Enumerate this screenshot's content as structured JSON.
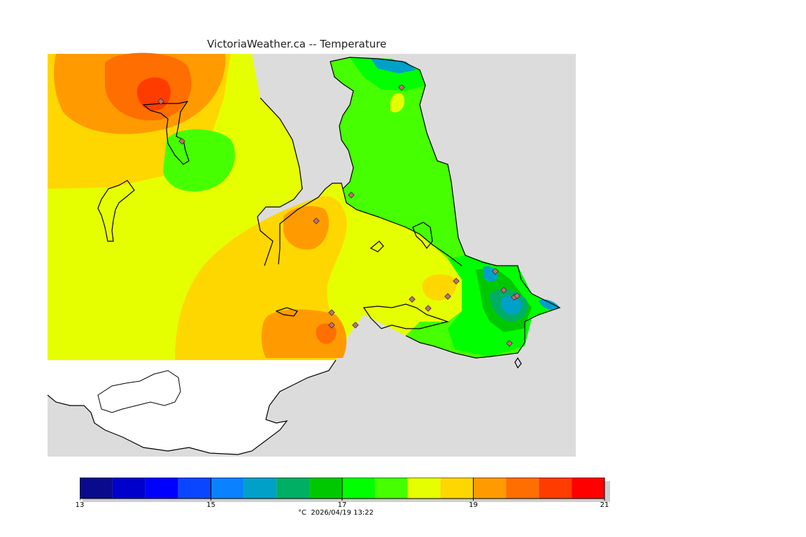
{
  "title": "VictoriaWeather.ca -- Temperature",
  "legend": {
    "unit": "°C",
    "timestamp": "2026/04/19 13:22",
    "min": 13,
    "max": 21,
    "tick_labels": [
      "13",
      "15",
      "17",
      "19",
      "21"
    ],
    "tick_values": [
      13,
      15,
      17,
      19,
      21
    ],
    "bins": [
      {
        "from": 13.0,
        "to": 13.5,
        "color": "#0a0a8c"
      },
      {
        "from": 13.5,
        "to": 14.0,
        "color": "#0000cc"
      },
      {
        "from": 14.0,
        "to": 14.5,
        "color": "#0000ff"
      },
      {
        "from": 14.5,
        "to": 15.0,
        "color": "#0a46ff"
      },
      {
        "from": 15.0,
        "to": 15.5,
        "color": "#0a82ff"
      },
      {
        "from": 15.5,
        "to": 16.0,
        "color": "#00a0c8"
      },
      {
        "from": 16.0,
        "to": 16.5,
        "color": "#00af64"
      },
      {
        "from": 16.5,
        "to": 17.0,
        "color": "#00c800"
      },
      {
        "from": 17.0,
        "to": 17.5,
        "color": "#00ff00"
      },
      {
        "from": 17.5,
        "to": 18.0,
        "color": "#46ff00"
      },
      {
        "from": 18.0,
        "to": 18.5,
        "color": "#e6ff00"
      },
      {
        "from": 18.5,
        "to": 19.0,
        "color": "#ffd700"
      },
      {
        "from": 19.0,
        "to": 19.5,
        "color": "#ff9b00"
      },
      {
        "from": 19.5,
        "to": 20.0,
        "color": "#ff6e00"
      },
      {
        "from": 20.0,
        "to": 20.5,
        "color": "#ff3c00"
      },
      {
        "from": 20.5,
        "to": 21.0,
        "color": "#ff0000"
      }
    ]
  },
  "colors": {
    "water": "#dcdcdc",
    "land_outside": "#ffffff",
    "coast": "#000000",
    "station_marker": "#c07070"
  }
}
